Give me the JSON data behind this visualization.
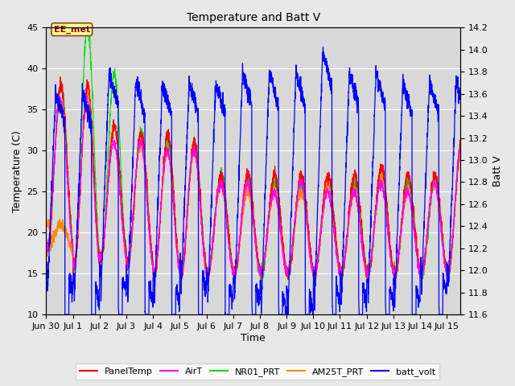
{
  "title": "Temperature and Batt V",
  "xlabel": "Time",
  "ylabel_left": "Temperature (C)",
  "ylabel_right": "Batt V",
  "annotation": "EE_met",
  "ylim_left": [
    10,
    45
  ],
  "ylim_right": [
    11.6,
    14.2
  ],
  "xlim": [
    0,
    15.5
  ],
  "xtick_labels": [
    "Jun 30",
    "Jul 1",
    "Jul 2",
    "Jul 3",
    "Jul 4",
    "Jul 5",
    "Jul 6",
    "Jul 7",
    "Jul 8",
    "Jul 9",
    "Jul 10",
    "Jul 11",
    "Jul 12",
    "Jul 13",
    "Jul 14",
    "Jul 15"
  ],
  "xtick_positions": [
    0,
    1,
    2,
    3,
    4,
    5,
    6,
    7,
    8,
    9,
    10,
    11,
    12,
    13,
    14,
    15
  ],
  "ytick_left": [
    10,
    15,
    20,
    25,
    30,
    35,
    40,
    45
  ],
  "ytick_right": [
    11.6,
    11.8,
    12.0,
    12.2,
    12.4,
    12.6,
    12.8,
    13.0,
    13.2,
    13.4,
    13.6,
    13.8,
    14.0,
    14.2
  ],
  "colors": {
    "PanelTemp": "#ff0000",
    "AirT": "#ff00ff",
    "NR01_PRT": "#00dd00",
    "AM25T_PRT": "#ff8800",
    "batt_volt": "#0000ff"
  },
  "legend_labels": [
    "PanelTemp",
    "AirT",
    "NR01_PRT",
    "AM25T_PRT",
    "batt_volt"
  ],
  "background_color": "#d8d8d8",
  "grid_color": "#ffffff",
  "fig_bg": "#e8e8e8",
  "annotation_bg": "#ffff99",
  "annotation_border": "#8B4513"
}
